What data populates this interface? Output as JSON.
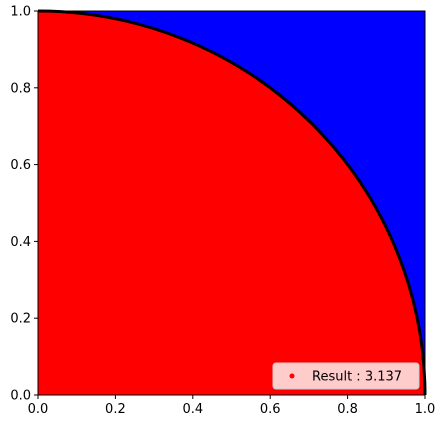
{
  "chart_data": {
    "type": "scatter",
    "title": "",
    "xlabel": "",
    "ylabel": "",
    "xlim": [
      0.0,
      1.0
    ],
    "ylim": [
      0.0,
      1.0
    ],
    "x_ticks": [
      "0.0",
      "0.2",
      "0.4",
      "0.6",
      "0.8",
      "1.0"
    ],
    "y_ticks": [
      "0.0",
      "0.2",
      "0.4",
      "0.6",
      "0.8",
      "1.0"
    ],
    "regions": [
      {
        "name": "inside unit circle (x^2 + y^2 <= 1)",
        "color": "#ff0000"
      },
      {
        "name": "outside unit circle",
        "color": "#0000ff"
      }
    ],
    "boundary": {
      "shape": "quarter circle",
      "radius": 1.0,
      "color": "#000000"
    },
    "legend": {
      "placement": "lower-right",
      "entries": [
        {
          "label": "Result : 3.137",
          "marker_color": "#ff0000"
        }
      ]
    },
    "result": 3.137,
    "grid": false
  }
}
